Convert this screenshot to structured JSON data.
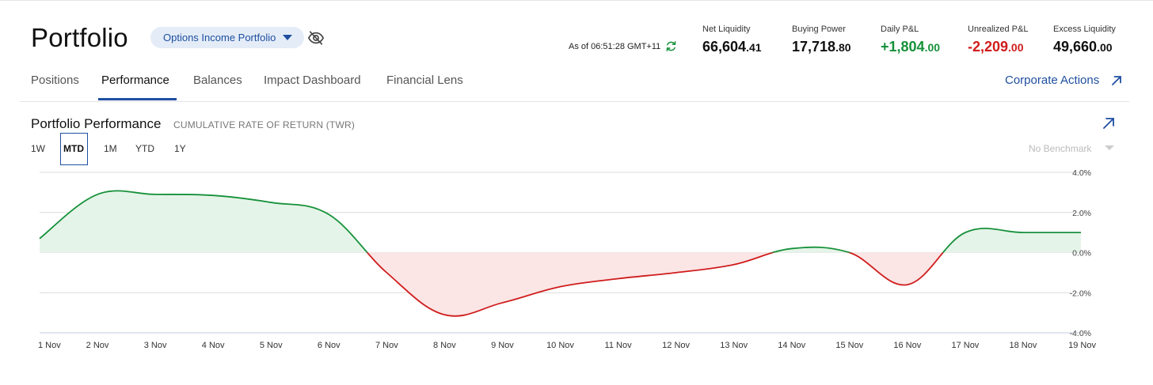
{
  "header": {
    "title": "Portfolio",
    "account_selector": "Options Income Portfolio",
    "as_of": "As of 06:51:28 GMT+11"
  },
  "stats": [
    {
      "label": "Net Liquidity",
      "int": "66,604",
      "dec": ".41",
      "tone": "neutral"
    },
    {
      "label": "Buying Power",
      "int": "17,718",
      "dec": ".80",
      "tone": "neutral"
    },
    {
      "label": "Daily P&L",
      "int": "+1,804",
      "dec": ".00",
      "tone": "positive"
    },
    {
      "label": "Unrealized P&L",
      "int": "-2,209",
      "dec": ".00",
      "tone": "negative"
    },
    {
      "label": "Excess Liquidity",
      "int": "49,660",
      "dec": ".00",
      "tone": "neutral"
    }
  ],
  "tabs": [
    "Positions",
    "Performance",
    "Balances",
    "Impact Dashboard",
    "Financial Lens"
  ],
  "active_tab": "Performance",
  "corporate_actions": "Corporate Actions",
  "panel": {
    "title": "Portfolio Performance",
    "subtitle": "CUMULATIVE RATE OF RETURN (TWR)",
    "ranges": [
      "1W",
      "MTD",
      "1M",
      "YTD",
      "1Y"
    ],
    "active_range": "MTD",
    "benchmark": "No Benchmark"
  },
  "colors": {
    "accent": "#1f4fa0",
    "positive": "#16913a",
    "negative": "#d01c1c",
    "positive_fill": "#e5f4e8",
    "negative_fill": "#fbe5e5"
  },
  "icons": {
    "account_dropdown": "caret-down-icon",
    "visibility": "eye-slash-icon",
    "refresh": "refresh-icon",
    "external_link": "arrow-up-right-icon",
    "benchmark_dropdown": "caret-down-icon"
  },
  "chart_data": {
    "type": "area",
    "x": [
      "1 Nov",
      "2 Nov",
      "3 Nov",
      "4 Nov",
      "5 Nov",
      "6 Nov",
      "7 Nov",
      "8 Nov",
      "9 Nov",
      "10 Nov",
      "11 Nov",
      "12 Nov",
      "13 Nov",
      "14 Nov",
      "15 Nov",
      "16 Nov",
      "17 Nov",
      "18 Nov",
      "19 Nov"
    ],
    "y": [
      0.7,
      2.9,
      2.9,
      2.85,
      2.5,
      1.9,
      -1.0,
      -3.1,
      -2.5,
      -1.7,
      -1.3,
      -1.0,
      -0.6,
      0.2,
      0.0,
      -1.6,
      1.0,
      1.0,
      1.0
    ],
    "yticks": [
      "4.0%",
      "2.0%",
      "0.0%",
      "-2.0%",
      "-4.0%"
    ],
    "ylim": [
      -4,
      4
    ],
    "grid": true,
    "fill_positive": "green",
    "fill_negative": "red"
  }
}
